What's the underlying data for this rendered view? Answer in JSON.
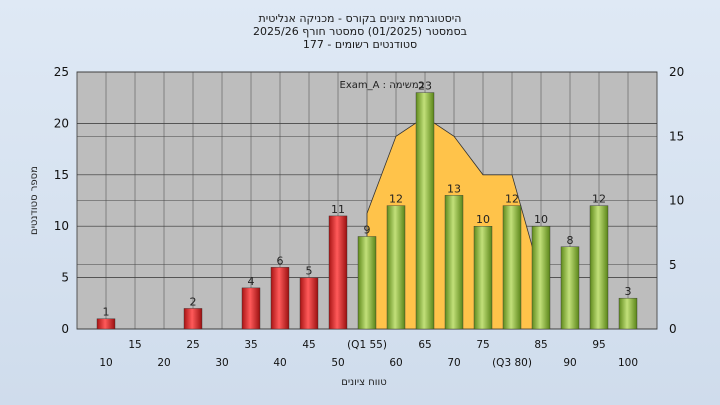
{
  "header": {
    "title_line1": "היסטוגרמת ציונים בקורס - מכניקה אנליטית",
    "title_line2": "בסמסטר  (01/2025)  סמסטר חורף 2025/26",
    "title_line3": "סטודנטים רשומים - 177"
  },
  "colors": {
    "fail_bar": "#e02a2a",
    "pass_bar": "#93c13a",
    "area": "#ffc34a",
    "plot_bg": "#bdbdbd"
  },
  "chart_data": {
    "type": "bar",
    "annotation": "Exam_A : במשימה",
    "xlabel": "טווח ציונים",
    "ylabel": "מספר סטודנטים",
    "ylim": [
      0,
      25
    ],
    "y_ticks": [
      0,
      5,
      10,
      15,
      20,
      25
    ],
    "y2lim": [
      0,
      20
    ],
    "y2_ticks": [
      0,
      5,
      10,
      15,
      20
    ],
    "grid": true,
    "x_ticks_top": [
      "15",
      "25",
      "35",
      "45",
      "(Q1 55)",
      "65",
      "75",
      "85",
      "95"
    ],
    "x_ticks_bottom": [
      "10",
      "20",
      "30",
      "40",
      "50",
      "60",
      "70",
      "(Q3 80)",
      "90",
      "100"
    ],
    "bars": [
      {
        "x": 10,
        "value": 1,
        "group": "fail"
      },
      {
        "x": 25,
        "value": 2,
        "group": "fail"
      },
      {
        "x": 35,
        "value": 4,
        "group": "fail"
      },
      {
        "x": 40,
        "value": 6,
        "group": "fail"
      },
      {
        "x": 45,
        "value": 5,
        "group": "fail"
      },
      {
        "x": 50,
        "value": 11,
        "group": "fail"
      },
      {
        "x": 55,
        "value": 9,
        "group": "pass"
      },
      {
        "x": 60,
        "value": 12,
        "group": "pass"
      },
      {
        "x": 65,
        "value": 23,
        "group": "pass"
      },
      {
        "x": 70,
        "value": 13,
        "group": "pass"
      },
      {
        "x": 75,
        "value": 10,
        "group": "pass"
      },
      {
        "x": 80,
        "value": 12,
        "group": "pass"
      },
      {
        "x": 85,
        "value": 10,
        "group": "pass"
      },
      {
        "x": 90,
        "value": 8,
        "group": "pass"
      },
      {
        "x": 95,
        "value": 12,
        "group": "pass"
      },
      {
        "x": 100,
        "value": 3,
        "group": "pass"
      }
    ],
    "area_series": {
      "axis": "right",
      "x": [
        55,
        60,
        65,
        70,
        75,
        80,
        85
      ],
      "values": [
        9,
        15,
        16.5,
        15,
        12,
        12,
        4
      ]
    }
  }
}
